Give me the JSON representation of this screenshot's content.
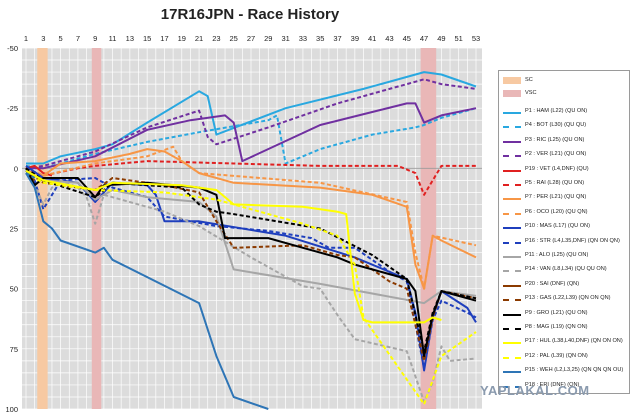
{
  "chart_data": {
    "type": "line",
    "title": "17R16JPN - Race History",
    "xlabel": "",
    "ylabel": "",
    "xlim": [
      1,
      53
    ],
    "ylim": [
      -50,
      100
    ],
    "y_inverted": true,
    "x_tick_labels": [
      "1",
      "3",
      "5",
      "7",
      "9",
      "11",
      "13",
      "15",
      "17",
      "19",
      "21",
      "23",
      "25",
      "27",
      "29",
      "31",
      "33",
      "35",
      "37",
      "39",
      "41",
      "43",
      "45",
      "47",
      "49",
      "51",
      "53"
    ],
    "y_tick_labels": [
      "-50",
      "-25",
      "0",
      "25",
      "50",
      "75",
      "100"
    ],
    "grid": true,
    "legend_position": "right",
    "bands": [
      {
        "name": "SC",
        "from": 2.3,
        "to": 3.5,
        "color": "#f7c9a2"
      },
      {
        "name": "VSC",
        "from": 8.6,
        "to": 9.7,
        "color": "#e9b7b7"
      },
      {
        "name": "VSC",
        "from": 46.6,
        "to": 48.4,
        "color": "#e9b7b7"
      }
    ],
    "series": [
      {
        "name": "P1 : HAM (L22) (QU ON)",
        "color": "#29a8e0",
        "dash": false,
        "points": [
          [
            1,
            -2
          ],
          [
            3,
            -2
          ],
          [
            5,
            -5
          ],
          [
            9,
            -8
          ],
          [
            11,
            -10
          ],
          [
            15,
            -19
          ],
          [
            21,
            -32
          ],
          [
            22,
            -30
          ],
          [
            23,
            -14
          ],
          [
            31,
            -25
          ],
          [
            40,
            -33
          ],
          [
            47,
            -40
          ],
          [
            49,
            -39
          ],
          [
            53,
            -34
          ]
        ]
      },
      {
        "name": "P4 : BOT (L30) (QU QU)",
        "color": "#29a8e0",
        "dash": true,
        "points": [
          [
            1,
            -1
          ],
          [
            3,
            0
          ],
          [
            9,
            -6
          ],
          [
            15,
            -11
          ],
          [
            21,
            -15
          ],
          [
            29,
            -20
          ],
          [
            30,
            -22
          ],
          [
            31,
            -2
          ],
          [
            35,
            -8
          ],
          [
            41,
            -14
          ],
          [
            46,
            -17
          ],
          [
            47,
            -18
          ],
          [
            49,
            -21
          ],
          [
            53,
            -25
          ]
        ]
      },
      {
        "name": "P3 : RIC (L25) (QU ON)",
        "color": "#7030a0",
        "dash": false,
        "points": [
          [
            1,
            0
          ],
          [
            3,
            0
          ],
          [
            9,
            -5
          ],
          [
            15,
            -16
          ],
          [
            20,
            -20
          ],
          [
            24,
            -22
          ],
          [
            25,
            -19
          ],
          [
            26,
            -3
          ],
          [
            35,
            -18
          ],
          [
            45,
            -27
          ],
          [
            46,
            -27
          ],
          [
            47,
            -19
          ],
          [
            49,
            -22
          ],
          [
            53,
            -25
          ]
        ]
      },
      {
        "name": "P2 : VER (L21) (QU ON)",
        "color": "#7030a0",
        "dash": true,
        "points": [
          [
            1,
            0
          ],
          [
            3,
            -1
          ],
          [
            9,
            -7
          ],
          [
            15,
            -17
          ],
          [
            21,
            -24
          ],
          [
            22,
            -13
          ],
          [
            23,
            -10
          ],
          [
            29,
            -17
          ],
          [
            37,
            -27
          ],
          [
            43,
            -33
          ],
          [
            47,
            -37
          ],
          [
            49,
            -35
          ],
          [
            53,
            -33
          ]
        ]
      },
      {
        "name": "P19 : VET (L4,DNF) (QU)",
        "color": "#e02020",
        "dash": false,
        "points": [
          [
            1,
            0
          ],
          [
            2,
            -1
          ],
          [
            3,
            2
          ],
          [
            4,
            3
          ]
        ]
      },
      {
        "name": "P5 : RAI (L28) (QU ON)",
        "color": "#e02020",
        "dash": true,
        "points": [
          [
            1,
            0
          ],
          [
            3,
            3
          ],
          [
            7,
            0
          ],
          [
            9,
            -1
          ],
          [
            15,
            -3
          ],
          [
            25,
            -2
          ],
          [
            35,
            -1
          ],
          [
            44,
            -1
          ],
          [
            46,
            2
          ],
          [
            47,
            11
          ],
          [
            48,
            5
          ],
          [
            49,
            -1
          ],
          [
            53,
            -1
          ]
        ]
      },
      {
        "name": "P7 : PER (L21) (QU QN)",
        "color": "#f79646",
        "dash": false,
        "points": [
          [
            1,
            1
          ],
          [
            3,
            3
          ],
          [
            5,
            -2
          ],
          [
            9,
            -3
          ],
          [
            13,
            -6
          ],
          [
            15,
            -8
          ],
          [
            17,
            -7
          ],
          [
            19,
            -3
          ],
          [
            21,
            2
          ],
          [
            25,
            6
          ],
          [
            35,
            8
          ],
          [
            41,
            11
          ],
          [
            45,
            16
          ],
          [
            46,
            40
          ],
          [
            47,
            50
          ],
          [
            48,
            28
          ],
          [
            49,
            30
          ],
          [
            53,
            37
          ]
        ]
      },
      {
        "name": "P6 : OCO (L20) (QU QN)",
        "color": "#f79646",
        "dash": true,
        "points": [
          [
            1,
            0
          ],
          [
            3,
            3
          ],
          [
            9,
            -2
          ],
          [
            15,
            -5
          ],
          [
            18,
            -9
          ],
          [
            19,
            -3
          ],
          [
            21,
            2
          ],
          [
            35,
            6
          ],
          [
            45,
            14
          ],
          [
            46,
            35
          ],
          [
            47,
            50
          ],
          [
            48,
            28
          ],
          [
            53,
            32
          ]
        ]
      },
      {
        "name": "P10 : MAS (L17) (QU ON)",
        "color": "#1f3fbd",
        "dash": false,
        "points": [
          [
            1,
            -1
          ],
          [
            3,
            4
          ],
          [
            7,
            6
          ],
          [
            9,
            14
          ],
          [
            11,
            6
          ],
          [
            15,
            7
          ],
          [
            16,
            11
          ],
          [
            17,
            22
          ],
          [
            21,
            22
          ],
          [
            31,
            28
          ],
          [
            39,
            37
          ],
          [
            45,
            46
          ],
          [
            46,
            60
          ],
          [
            47,
            84
          ],
          [
            48,
            62
          ],
          [
            49,
            51
          ],
          [
            52,
            58
          ],
          [
            53,
            64
          ]
        ]
      },
      {
        "name": "P16 : STR (L4,L35,DNF) (QN ON QN)",
        "color": "#1f3fbd",
        "dash": true,
        "points": [
          [
            1,
            1
          ],
          [
            2,
            5
          ],
          [
            3,
            17
          ],
          [
            4,
            11
          ],
          [
            5,
            5
          ],
          [
            9,
            4
          ],
          [
            11,
            8
          ],
          [
            15,
            12
          ],
          [
            17,
            20
          ],
          [
            23,
            24
          ],
          [
            29,
            26
          ],
          [
            34,
            29
          ],
          [
            36,
            33
          ],
          [
            39,
            33
          ],
          [
            43,
            43
          ],
          [
            45,
            47
          ],
          [
            47,
            83
          ],
          [
            48,
            63
          ],
          [
            49,
            55
          ],
          [
            52,
            60
          ],
          [
            53,
            62
          ]
        ]
      },
      {
        "name": "P11 : ALO (L25) (QU ON)",
        "color": "#a6a6a6",
        "dash": false,
        "points": [
          [
            1,
            1
          ],
          [
            3,
            5
          ],
          [
            7,
            6
          ],
          [
            9,
            13
          ],
          [
            11,
            9
          ],
          [
            15,
            12
          ],
          [
            21,
            14
          ],
          [
            23,
            20
          ],
          [
            25,
            42
          ],
          [
            35,
            48
          ],
          [
            47,
            56
          ],
          [
            49,
            51
          ],
          [
            53,
            53
          ]
        ]
      },
      {
        "name": "P14 : VAN (L8,L34) (QU QU ON)",
        "color": "#a6a6a6",
        "dash": true,
        "points": [
          [
            1,
            2
          ],
          [
            2,
            7
          ],
          [
            3,
            15
          ],
          [
            4,
            8
          ],
          [
            5,
            5
          ],
          [
            7,
            8
          ],
          [
            8,
            12
          ],
          [
            9,
            23
          ],
          [
            10,
            11
          ],
          [
            17,
            18
          ],
          [
            21,
            24
          ],
          [
            27,
            37
          ],
          [
            33,
            49
          ],
          [
            35,
            50
          ],
          [
            37,
            61
          ],
          [
            39,
            71
          ],
          [
            45,
            76
          ],
          [
            47,
            97
          ],
          [
            48,
            89
          ],
          [
            49,
            74
          ],
          [
            50,
            80
          ],
          [
            53,
            79
          ]
        ]
      },
      {
        "name": "P20 : SAI (DNF) (QN)",
        "color": "#8b3a00",
        "dash": false,
        "points": [
          [
            1,
            2
          ],
          [
            2,
            5
          ]
        ]
      },
      {
        "name": "P13 : GAS (L22,L39) (QN ON QN)",
        "color": "#8b3a00",
        "dash": true,
        "points": [
          [
            1,
            1
          ],
          [
            3,
            6
          ],
          [
            9,
            9
          ],
          [
            11,
            4
          ],
          [
            17,
            7
          ],
          [
            21,
            10
          ],
          [
            23,
            22
          ],
          [
            25,
            33
          ],
          [
            33,
            32
          ],
          [
            37,
            36
          ],
          [
            39,
            37
          ],
          [
            41,
            42
          ],
          [
            43,
            47
          ],
          [
            45,
            50
          ],
          [
            47,
            80
          ],
          [
            48,
            62
          ],
          [
            49,
            51
          ],
          [
            53,
            54
          ]
        ]
      },
      {
        "name": "P9 : GRO (L21) (QU ON)",
        "color": "#000000",
        "dash": false,
        "points": [
          [
            1,
            0
          ],
          [
            2,
            7
          ],
          [
            3,
            4
          ],
          [
            7,
            4
          ],
          [
            9,
            12
          ],
          [
            10,
            7
          ],
          [
            15,
            6
          ],
          [
            21,
            8
          ],
          [
            23,
            11
          ],
          [
            24,
            29
          ],
          [
            29,
            29
          ],
          [
            33,
            33
          ],
          [
            37,
            37
          ],
          [
            39,
            40
          ],
          [
            41,
            42
          ],
          [
            45,
            46
          ],
          [
            46,
            51
          ],
          [
            47,
            78
          ],
          [
            48,
            61
          ],
          [
            49,
            51
          ],
          [
            53,
            55
          ]
        ]
      },
      {
        "name": "P8 : MAG (L19) (QN ON)",
        "color": "#000000",
        "dash": true,
        "points": [
          [
            1,
            0
          ],
          [
            3,
            5
          ],
          [
            9,
            12
          ],
          [
            11,
            6
          ],
          [
            19,
            8
          ],
          [
            21,
            15
          ],
          [
            23,
            18
          ],
          [
            25,
            19
          ],
          [
            35,
            25
          ],
          [
            41,
            36
          ],
          [
            45,
            46
          ],
          [
            47,
            76
          ],
          [
            48,
            60
          ],
          [
            49,
            51
          ],
          [
            53,
            54
          ]
        ]
      },
      {
        "name": "P17 : HUL (L38,L40,DNF) (QN ON ON)",
        "color": "#ffff00",
        "dash": false,
        "points": [
          [
            1,
            1
          ],
          [
            3,
            5
          ],
          [
            9,
            9
          ],
          [
            11,
            6
          ],
          [
            19,
            7
          ],
          [
            23,
            9
          ],
          [
            25,
            15
          ],
          [
            33,
            16
          ],
          [
            35,
            17
          ],
          [
            37,
            18
          ],
          [
            38,
            19
          ],
          [
            39,
            52
          ],
          [
            40,
            63
          ],
          [
            41,
            64
          ],
          [
            47,
            64
          ],
          [
            48,
            62
          ],
          [
            49,
            63
          ]
        ]
      },
      {
        "name": "P12 : PAL (L39) (QN ON)",
        "color": "#ffff00",
        "dash": true,
        "points": [
          [
            1,
            2
          ],
          [
            3,
            6
          ],
          [
            9,
            9
          ],
          [
            17,
            10
          ],
          [
            23,
            13
          ],
          [
            33,
            23
          ],
          [
            37,
            28
          ],
          [
            39,
            40
          ],
          [
            40,
            62
          ],
          [
            47,
            98
          ],
          [
            48,
            88
          ],
          [
            49,
            78
          ],
          [
            53,
            68
          ]
        ]
      },
      {
        "name": "P15 : WEH (L2,L3,25) (QN QN QN OU)",
        "color": "#2e75b6",
        "dash": false,
        "points": [
          [
            1,
            2
          ],
          [
            2,
            8
          ],
          [
            3,
            22
          ],
          [
            4,
            25
          ],
          [
            5,
            30
          ],
          [
            9,
            35
          ],
          [
            10,
            33
          ],
          [
            11,
            38
          ],
          [
            21,
            56
          ],
          [
            23,
            78
          ],
          [
            25,
            95
          ],
          [
            29,
            100
          ]
        ]
      },
      {
        "name": "P18 : ERI (DNF) (QN)",
        "color": "#2e75b6",
        "dash": true,
        "points": [
          [
            1,
            2
          ],
          [
            2,
            4
          ]
        ]
      }
    ]
  },
  "legend": {
    "sc_label": "SC",
    "vsc_label": "VSC"
  },
  "watermark": "YAPLAKAL.COM"
}
